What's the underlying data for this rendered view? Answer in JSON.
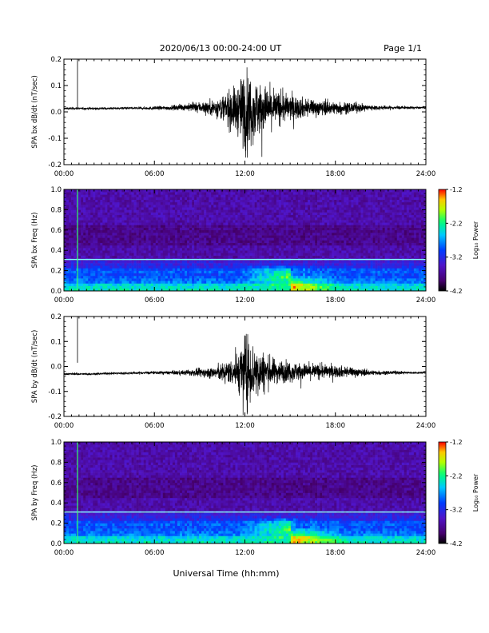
{
  "header": {
    "title": "2020/06/13  00:00-24:00 UT",
    "page": "Page 1/1"
  },
  "footer": {
    "xlabel": "Universal Time (hh:mm)"
  },
  "colorbar": {
    "label": "Log₁₀ Power",
    "ticks": [
      "-1.2",
      "-2.2",
      "-3.2",
      "-4.2"
    ],
    "colors": [
      "#ff0000",
      "#ffff00",
      "#00ff00",
      "#00ffff",
      "#0000ff",
      "#ff00ff",
      "#000000"
    ]
  },
  "chart_data": [
    {
      "type": "line",
      "title": "",
      "ylabel": "SPA bx dB/dt (nT/sec)",
      "xlabel": "",
      "x_ticks": [
        "00:00",
        "06:00",
        "12:00",
        "18:00",
        "24:00"
      ],
      "xlim": [
        0,
        24
      ],
      "y_ticks": [
        "0.2",
        "0.1",
        "0.0",
        "-0.1",
        "-0.2"
      ],
      "ylim": [
        -0.2,
        0.2
      ],
      "series": [
        {
          "x": [
            0,
            1,
            2,
            3,
            4,
            5,
            6,
            7,
            8,
            9,
            10,
            10.5,
            11,
            11.5,
            12,
            12.5,
            13,
            13.5,
            14,
            15,
            16,
            17,
            18,
            19,
            20,
            21,
            22,
            23,
            24
          ],
          "envelope": [
            0.005,
            0.005,
            0.005,
            0.005,
            0.006,
            0.006,
            0.008,
            0.01,
            0.015,
            0.025,
            0.04,
            0.06,
            0.09,
            0.11,
            0.2,
            0.15,
            0.12,
            0.1,
            0.08,
            0.06,
            0.045,
            0.035,
            0.03,
            0.025,
            0.015,
            0.01,
            0.008,
            0.006,
            0.005
          ],
          "baseline": [
            0.013,
            0.013,
            0.013,
            0.013,
            0.014,
            0.014,
            0.014,
            0.015,
            0.018,
            0.018,
            0.015,
            0.012,
            0.01,
            0.008,
            0.005,
            0.01,
            0.012,
            0.014,
            0.015,
            0.016,
            0.016,
            0.015,
            0.015,
            0.015,
            0.016,
            0.016,
            0.016,
            0.016,
            0.016
          ]
        }
      ]
    },
    {
      "type": "heatmap",
      "title": "",
      "ylabel": "SPA bx Freq (Hz)",
      "xlabel": "",
      "x_ticks": [
        "00:00",
        "06:00",
        "12:00",
        "18:00",
        "24:00"
      ],
      "xlim": [
        0,
        24
      ],
      "y_ticks": [
        "1.0",
        "0.8",
        "0.6",
        "0.4",
        "0.2",
        "0.0"
      ],
      "ylim": [
        0,
        1.0
      ],
      "zlim": [
        -4.2,
        -1.2
      ],
      "features": {
        "horizontal_line_hz": 0.31,
        "vertical_line_hours": 0.9,
        "activity_hz_range": [
          0.0,
          0.25
        ],
        "activity_hours": [
          11.5,
          18.5
        ]
      }
    },
    {
      "type": "line",
      "title": "",
      "ylabel": "SPA by dB/dt (nT/sec)",
      "xlabel": "",
      "x_ticks": [
        "00:00",
        "06:00",
        "12:00",
        "18:00",
        "24:00"
      ],
      "xlim": [
        0,
        24
      ],
      "y_ticks": [
        "0.2",
        "0.1",
        "0.0",
        "-0.1",
        "-0.2"
      ],
      "ylim": [
        -0.2,
        0.2
      ],
      "series": [
        {
          "x": [
            0,
            1,
            2,
            3,
            4,
            5,
            6,
            7,
            8,
            9,
            10,
            10.5,
            11,
            11.5,
            12,
            12.5,
            13,
            13.5,
            14,
            15,
            16,
            17,
            18,
            19,
            20,
            21,
            22,
            23,
            24
          ],
          "envelope": [
            0.005,
            0.005,
            0.005,
            0.005,
            0.006,
            0.006,
            0.007,
            0.009,
            0.012,
            0.02,
            0.03,
            0.045,
            0.06,
            0.09,
            0.18,
            0.15,
            0.11,
            0.08,
            0.06,
            0.05,
            0.04,
            0.035,
            0.03,
            0.025,
            0.015,
            0.01,
            0.008,
            0.006,
            0.005
          ],
          "baseline": [
            -0.03,
            -0.03,
            -0.03,
            -0.028,
            -0.027,
            -0.026,
            -0.025,
            -0.025,
            -0.025,
            -0.025,
            -0.025,
            -0.025,
            -0.02,
            -0.02,
            -0.02,
            -0.02,
            -0.02,
            -0.02,
            -0.02,
            -0.02,
            -0.02,
            -0.02,
            -0.02,
            -0.022,
            -0.025,
            -0.025,
            -0.025,
            -0.025,
            -0.025
          ]
        }
      ]
    },
    {
      "type": "heatmap",
      "title": "",
      "ylabel": "SPA by Freq (Hz)",
      "xlabel": "",
      "x_ticks": [
        "00:00",
        "06:00",
        "12:00",
        "18:00",
        "24:00"
      ],
      "xlim": [
        0,
        24
      ],
      "y_ticks": [
        "1.0",
        "0.8",
        "0.6",
        "0.4",
        "0.2",
        "0.0"
      ],
      "ylim": [
        0,
        1.0
      ],
      "zlim": [
        -4.2,
        -1.2
      ],
      "features": {
        "horizontal_line_hz": 0.31,
        "vertical_line_hours": 0.9,
        "activity_hz_range": [
          0.0,
          0.25
        ],
        "activity_hours": [
          11.5,
          19.0
        ]
      }
    }
  ]
}
